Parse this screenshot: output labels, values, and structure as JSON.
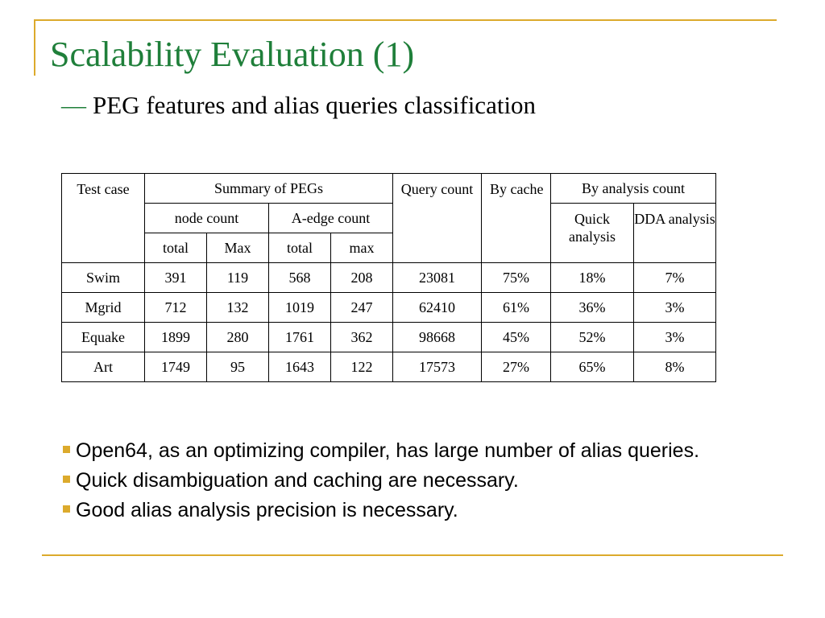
{
  "title": "Scalability Evaluation (1)",
  "subtitle": {
    "dash": "—",
    "text": "PEG features and alias queries classification"
  },
  "table": {
    "headers": {
      "test_case": "Test case",
      "summary_of_pegs": "Summary of PEGs",
      "node_count": "node count",
      "a_edge_count": "A-edge count",
      "node_total": "total",
      "node_max": "Max",
      "edge_total": "total",
      "edge_max": "max",
      "query_count": "Query count",
      "by_cache": "By cache",
      "by_analysis_count": "By analysis count",
      "quick_analysis": "Quick analysis",
      "dda_analysis": "DDA analysis"
    },
    "rows": [
      {
        "test_case": "Swim",
        "node_total": "391",
        "node_max": "119",
        "edge_total": "568",
        "edge_max": "208",
        "query_count": "23081",
        "by_cache": "75%",
        "quick": "18%",
        "dda": "7%"
      },
      {
        "test_case": "Mgrid",
        "node_total": "712",
        "node_max": "132",
        "edge_total": "1019",
        "edge_max": "247",
        "query_count": "62410",
        "by_cache": "61%",
        "quick": "36%",
        "dda": "3%"
      },
      {
        "test_case": "Equake",
        "node_total": "1899",
        "node_max": "280",
        "edge_total": "1761",
        "edge_max": "362",
        "query_count": "98668",
        "by_cache": "45%",
        "quick": "52%",
        "dda": "3%"
      },
      {
        "test_case": "Art",
        "node_total": "1749",
        "node_max": "95",
        "edge_total": "1643",
        "edge_max": "122",
        "query_count": "17573",
        "by_cache": "27%",
        "quick": "65%",
        "dda": "8%"
      }
    ]
  },
  "bullets": [
    "Open64, as an optimizing compiler, has large number of alias queries.",
    "Quick disambiguation and caching are necessary.",
    "Good alias analysis precision is necessary."
  ],
  "colors": {
    "title": "#1f7f3a",
    "accent_rule": "#dcaa2c",
    "bullet_mark": "#dcaa2c"
  }
}
